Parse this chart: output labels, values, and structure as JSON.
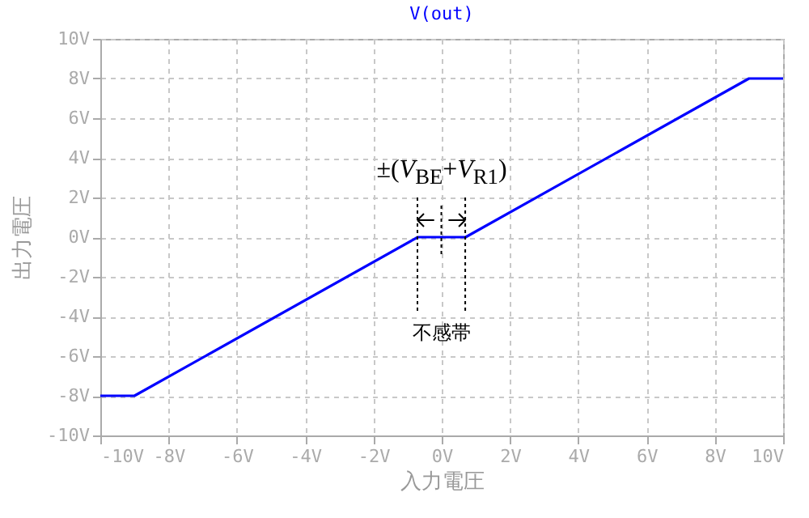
{
  "chart_data": {
    "type": "line",
    "title": "V(out)",
    "xlabel": "入力電圧",
    "ylabel": "出力電圧",
    "x": [
      -10,
      -9,
      -0.7,
      0.7,
      9,
      10
    ],
    "series": [
      {
        "color": "#0000ff",
        "values": [
          -8,
          -8,
          0,
          0,
          8,
          8
        ]
      }
    ],
    "xlim": [
      -10,
      10
    ],
    "ylim": [
      -10,
      10
    ],
    "xticks": [
      {
        "value": -10,
        "label": "-10V"
      },
      {
        "value": -8,
        "label": "-8V"
      },
      {
        "value": -6,
        "label": "-6V"
      },
      {
        "value": -4,
        "label": "-4V"
      },
      {
        "value": -2,
        "label": "-2V"
      },
      {
        "value": 0,
        "label": "0V"
      },
      {
        "value": 2,
        "label": "2V"
      },
      {
        "value": 4,
        "label": "4V"
      },
      {
        "value": 6,
        "label": "6V"
      },
      {
        "value": 8,
        "label": "8V"
      },
      {
        "value": 10,
        "label": "10V"
      }
    ],
    "yticks": [
      {
        "value": -10,
        "label": "-10V"
      },
      {
        "value": -8,
        "label": "-8V"
      },
      {
        "value": -6,
        "label": "-6V"
      },
      {
        "value": -4,
        "label": "-4V"
      },
      {
        "value": -2,
        "label": "-2V"
      },
      {
        "value": 0,
        "label": "0V"
      },
      {
        "value": 2,
        "label": "2V"
      },
      {
        "value": 4,
        "label": "4V"
      },
      {
        "value": 6,
        "label": "6V"
      },
      {
        "value": 8,
        "label": "8V"
      },
      {
        "value": 10,
        "label": "10V"
      }
    ],
    "grid": true,
    "annotations": [
      "±(V$_{BE}$+V$_{R1}$)",
      "不感帯"
    ]
  }
}
